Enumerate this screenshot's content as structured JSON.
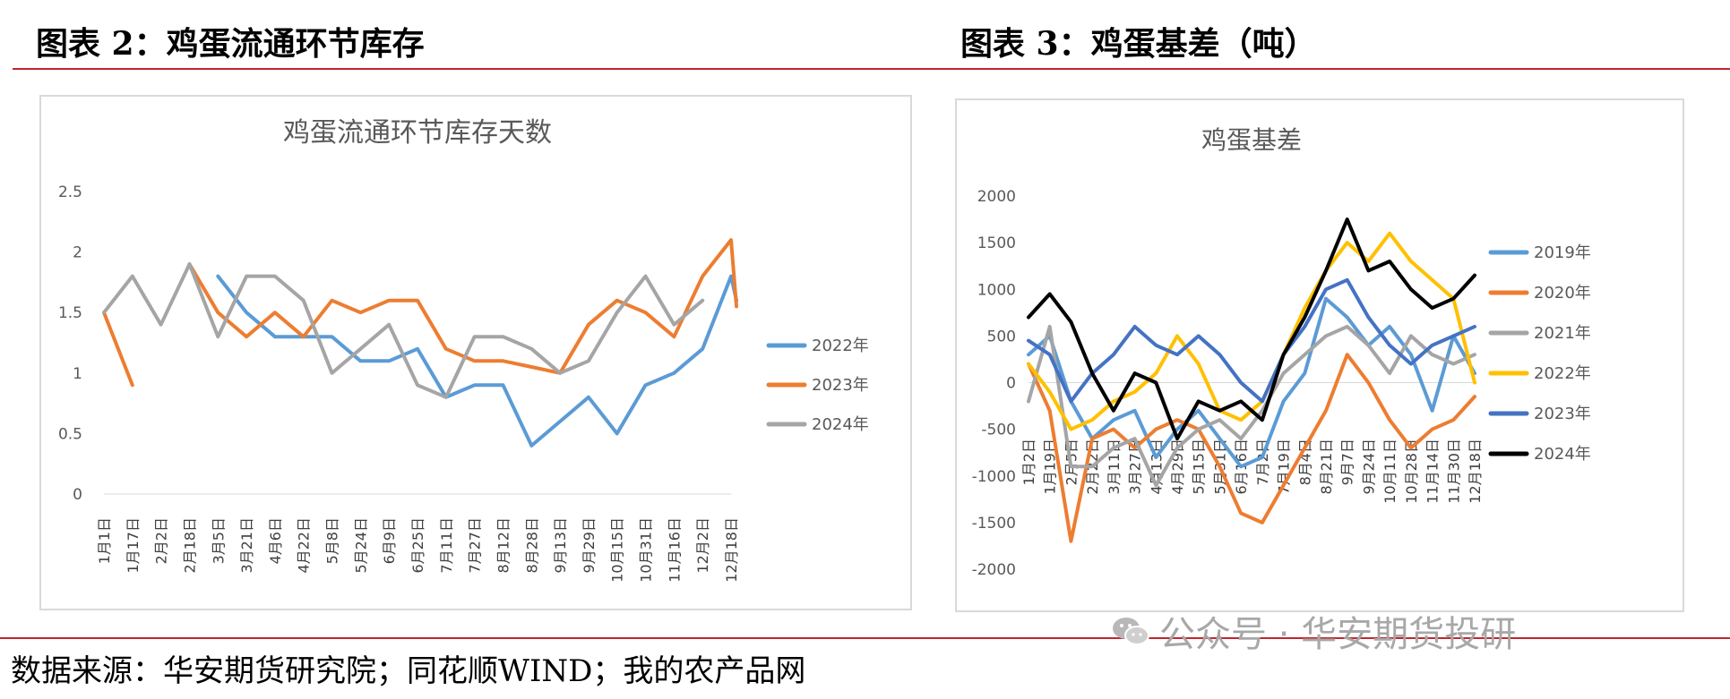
{
  "left_title": "图表 2：鸡蛋流通环节库存",
  "right_title": "图表 3：鸡蛋基差（吨）",
  "source": "数据来源：华安期货研究院；同花顺WIND；我的农产品网",
  "watermark": "公众号 · 华安期货投研",
  "chart_data": [
    {
      "type": "line",
      "title": "鸡蛋流通环节库存天数",
      "categories": [
        "1月1日",
        "1月17日",
        "2月2日",
        "2月18日",
        "3月5日",
        "3月21日",
        "4月6日",
        "4月22日",
        "5月8日",
        "5月24日",
        "6月9日",
        "6月25日",
        "7月11日",
        "7月27日",
        "8月12日",
        "8月28日",
        "9月13日",
        "9月29日",
        "10月15日",
        "10月31日",
        "11月16日",
        "12月2日",
        "12月18日"
      ],
      "ylim": [
        0,
        2.5
      ],
      "yticks": [
        "0",
        "0.5",
        "1",
        "1.5",
        "2",
        "2.5"
      ],
      "legend_position": "right",
      "series": [
        {
          "name": "2022年",
          "color": "#5b9bd5",
          "values": [
            null,
            null,
            null,
            null,
            1.8,
            1.5,
            1.3,
            1.3,
            1.3,
            1.1,
            1.1,
            1.2,
            0.8,
            0.9,
            0.9,
            0.4,
            0.6,
            0.8,
            0.5,
            0.9,
            1.0,
            1.2,
            1.8
          ],
          "end_value": 1.6
        },
        {
          "name": "2023年",
          "color": "#ed7d31",
          "values": [
            1.5,
            0.9,
            null,
            1.9,
            1.5,
            1.3,
            1.5,
            1.3,
            1.6,
            1.5,
            1.6,
            1.6,
            1.2,
            1.1,
            1.1,
            1.05,
            1.0,
            1.4,
            1.6,
            1.5,
            1.3,
            1.8,
            2.1
          ],
          "end_value": 1.55
        },
        {
          "name": "2024年",
          "color": "#a5a5a5",
          "values": [
            1.5,
            1.8,
            1.4,
            1.9,
            1.3,
            1.8,
            1.8,
            1.6,
            1.0,
            1.2,
            1.4,
            0.9,
            0.8,
            1.3,
            1.3,
            1.2,
            1.0,
            1.1,
            1.5,
            1.8,
            1.4,
            1.6,
            null
          ]
        }
      ]
    },
    {
      "type": "line",
      "title": "鸡蛋基差",
      "categories": [
        "1月2日",
        "1月19日",
        "2月5日",
        "2月22日",
        "3月11日",
        "3月27日",
        "4月13日",
        "4月29日",
        "5月15日",
        "5月31日",
        "6月16日",
        "7月2日",
        "7月19日",
        "8月4日",
        "8月21日",
        "9月7日",
        "9月24日",
        "10月11日",
        "10月28日",
        "11月14日",
        "11月30日",
        "12月18日"
      ],
      "ylim": [
        -2000,
        2000
      ],
      "yticks": [
        "-2000",
        "-1500",
        "-1000",
        "-500",
        "0",
        "500",
        "1000",
        "1500",
        "2000"
      ],
      "legend_position": "right",
      "series": [
        {
          "name": "2019年",
          "color": "#5b9bd5",
          "values": [
            300,
            500,
            -200,
            -600,
            -400,
            -300,
            -800,
            -500,
            -300,
            -600,
            -900,
            -800,
            -200,
            100,
            900,
            700,
            400,
            600,
            300,
            -300,
            500,
            100
          ]
        },
        {
          "name": "2020年",
          "color": "#ed7d31",
          "values": [
            200,
            -300,
            -1700,
            -600,
            -500,
            -700,
            -500,
            -400,
            -500,
            -900,
            -1400,
            -1500,
            -1100,
            -700,
            -300,
            300,
            0,
            -400,
            -700,
            -500,
            -400,
            -150
          ]
        },
        {
          "name": "2021年",
          "color": "#a5a5a5",
          "values": [
            -200,
            600,
            -900,
            -900,
            -700,
            -600,
            -1100,
            -700,
            -500,
            -400,
            -600,
            -300,
            100,
            300,
            500,
            600,
            400,
            100,
            500,
            300,
            200,
            300
          ]
        },
        {
          "name": "2022年",
          "color": "#ffc000",
          "values": [
            200,
            -100,
            -500,
            -400,
            -200,
            -100,
            100,
            500,
            200,
            -300,
            -400,
            -200,
            300,
            800,
            1200,
            1500,
            1300,
            1600,
            1300,
            1100,
            900,
            0
          ]
        },
        {
          "name": "2023年",
          "color": "#4472c4",
          "values": [
            450,
            300,
            -200,
            100,
            300,
            600,
            400,
            300,
            500,
            300,
            0,
            -200,
            300,
            600,
            1000,
            1100,
            700,
            400,
            200,
            400,
            500,
            600
          ]
        },
        {
          "name": "2024年",
          "color": "#000000",
          "values": [
            700,
            950,
            650,
            100,
            -300,
            100,
            0,
            -600,
            -200,
            -300,
            -200,
            -400,
            300,
            700,
            1200,
            1750,
            1200,
            1300,
            1000,
            800,
            900,
            1150
          ]
        }
      ]
    }
  ]
}
